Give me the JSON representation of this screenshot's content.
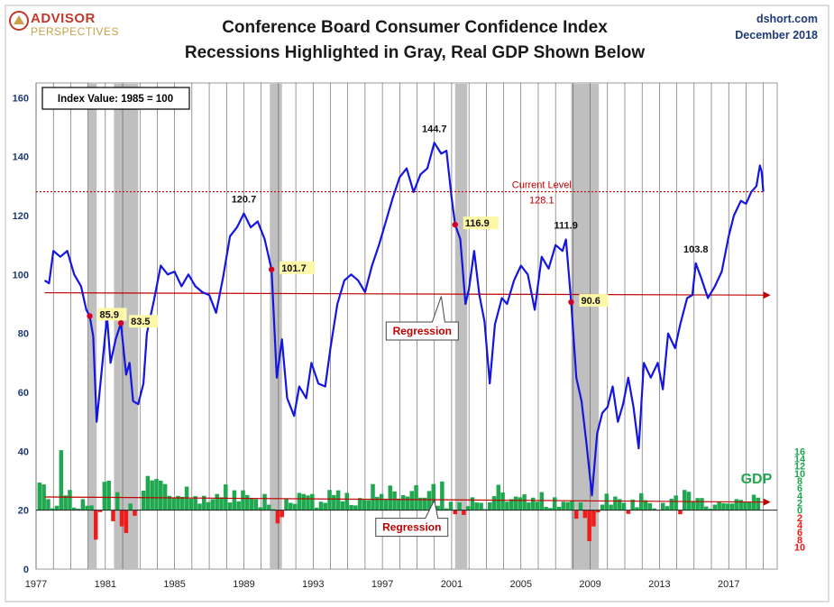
{
  "header": {
    "logo_top": "ADVISOR",
    "logo_bottom": "PERSPECTIVES",
    "title_line1": "Conference Board Consumer Confidence Index",
    "title_line2": "Recessions Highlighted in Gray, Real GDP Shown Below",
    "source": "dshort.com",
    "date": "December 2018"
  },
  "colors": {
    "index_line": "#1515e0",
    "recession": "#bfbfbf",
    "gdp_positive": "#1fa84f",
    "gdp_negative": "#ee1c1c",
    "regression": "#c00000",
    "current_level": "#c00000",
    "left_axis": "#1f3b73",
    "gdp_axis_green": "#1fa84f"
  },
  "chart_data": {
    "type": "line",
    "annotation_box": "Index Value: 1985  = 100",
    "y_ticks": [
      0,
      20,
      40,
      60,
      80,
      100,
      120,
      140,
      160
    ],
    "ylim": [
      0,
      165
    ],
    "xlim": [
      1977,
      2019.8
    ],
    "x_tick_labels": [
      "1977",
      "1981",
      "1985",
      "1989",
      "1993",
      "1997",
      "2001",
      "2005",
      "2009",
      "2013",
      "2017"
    ],
    "recessions": [
      [
        1980.0,
        1980.5
      ],
      [
        1981.5,
        1982.9
      ],
      [
        1990.5,
        1991.2
      ],
      [
        2001.2,
        2001.9
      ],
      [
        2007.9,
        2009.5
      ]
    ],
    "series": [
      {
        "points": [
          [
            1977.5,
            98
          ],
          [
            1977.75,
            97
          ],
          [
            1978.0,
            108
          ],
          [
            1978.4,
            106
          ],
          [
            1978.8,
            108
          ],
          [
            1979.2,
            100
          ],
          [
            1979.6,
            96
          ],
          [
            1979.9,
            88
          ],
          [
            1980.1,
            85.9
          ],
          [
            1980.3,
            79
          ],
          [
            1980.5,
            50
          ],
          [
            1980.8,
            68
          ],
          [
            1981.1,
            85.9
          ],
          [
            1981.3,
            70
          ],
          [
            1981.6,
            78
          ],
          [
            1981.9,
            83.5
          ],
          [
            1982.2,
            66
          ],
          [
            1982.4,
            70
          ],
          [
            1982.6,
            57
          ],
          [
            1982.9,
            56
          ],
          [
            1983.2,
            63
          ],
          [
            1983.4,
            80
          ],
          [
            1983.8,
            91
          ],
          [
            1984.2,
            103
          ],
          [
            1984.6,
            100
          ],
          [
            1985.0,
            101
          ],
          [
            1985.4,
            96
          ],
          [
            1985.8,
            100
          ],
          [
            1986.2,
            96
          ],
          [
            1986.6,
            94
          ],
          [
            1987.0,
            93
          ],
          [
            1987.4,
            87
          ],
          [
            1987.8,
            99
          ],
          [
            1988.2,
            113
          ],
          [
            1988.6,
            116
          ],
          [
            1989.0,
            120.7
          ],
          [
            1989.4,
            116
          ],
          [
            1989.8,
            118
          ],
          [
            1990.2,
            112
          ],
          [
            1990.6,
            101.7
          ],
          [
            1990.9,
            65
          ],
          [
            1991.2,
            78
          ],
          [
            1991.5,
            58
          ],
          [
            1991.9,
            52
          ],
          [
            1992.2,
            62
          ],
          [
            1992.6,
            58
          ],
          [
            1992.9,
            70
          ],
          [
            1993.3,
            63
          ],
          [
            1993.7,
            62
          ],
          [
            1994.0,
            75
          ],
          [
            1994.4,
            90
          ],
          [
            1994.8,
            98
          ],
          [
            1995.2,
            100
          ],
          [
            1995.6,
            98
          ],
          [
            1996.0,
            94
          ],
          [
            1996.4,
            103
          ],
          [
            1996.8,
            110
          ],
          [
            1997.2,
            118
          ],
          [
            1997.6,
            126
          ],
          [
            1998.0,
            133
          ],
          [
            1998.4,
            136
          ],
          [
            1998.8,
            128
          ],
          [
            1999.2,
            134
          ],
          [
            1999.6,
            136
          ],
          [
            2000.0,
            144.7
          ],
          [
            2000.4,
            141
          ],
          [
            2000.7,
            142
          ],
          [
            2001.0,
            126
          ],
          [
            2001.2,
            116.9
          ],
          [
            2001.5,
            112
          ],
          [
            2001.8,
            90
          ],
          [
            2002.0,
            95
          ],
          [
            2002.3,
            108
          ],
          [
            2002.6,
            93
          ],
          [
            2002.9,
            84
          ],
          [
            2003.2,
            63
          ],
          [
            2003.5,
            83
          ],
          [
            2003.9,
            92
          ],
          [
            2004.2,
            90
          ],
          [
            2004.6,
            98
          ],
          [
            2005.0,
            103
          ],
          [
            2005.4,
            100
          ],
          [
            2005.8,
            88
          ],
          [
            2006.2,
            106
          ],
          [
            2006.6,
            102
          ],
          [
            2007.0,
            110
          ],
          [
            2007.4,
            108
          ],
          [
            2007.6,
            111.9
          ],
          [
            2007.9,
            90.6
          ],
          [
            2008.2,
            65
          ],
          [
            2008.5,
            57
          ],
          [
            2008.8,
            42
          ],
          [
            2009.1,
            25
          ],
          [
            2009.4,
            46
          ],
          [
            2009.7,
            53
          ],
          [
            2010.0,
            55
          ],
          [
            2010.3,
            62
          ],
          [
            2010.6,
            50
          ],
          [
            2010.9,
            56
          ],
          [
            2011.2,
            65
          ],
          [
            2011.5,
            55
          ],
          [
            2011.8,
            41
          ],
          [
            2012.1,
            70
          ],
          [
            2012.5,
            65
          ],
          [
            2012.9,
            70
          ],
          [
            2013.2,
            61
          ],
          [
            2013.5,
            80
          ],
          [
            2013.9,
            75
          ],
          [
            2014.2,
            83
          ],
          [
            2014.6,
            92
          ],
          [
            2014.9,
            93
          ],
          [
            2015.1,
            103.8
          ],
          [
            2015.4,
            99
          ],
          [
            2015.8,
            92
          ],
          [
            2016.2,
            96
          ],
          [
            2016.6,
            101
          ],
          [
            2017.0,
            113
          ],
          [
            2017.3,
            120
          ],
          [
            2017.7,
            125
          ],
          [
            2018.0,
            124
          ],
          [
            2018.3,
            128
          ],
          [
            2018.6,
            130
          ],
          [
            2018.8,
            137
          ],
          [
            2018.9,
            135
          ],
          [
            2019.0,
            128.1
          ]
        ]
      }
    ],
    "point_labels": [
      {
        "x": 1980.1,
        "y": 85.9,
        "label": "85.9",
        "highlight": true
      },
      {
        "x": 1981.9,
        "y": 83.5,
        "label": "83.5",
        "highlight": true
      },
      {
        "x": 1989.0,
        "y": 120.7,
        "label": "120.7",
        "highlight": false
      },
      {
        "x": 1990.6,
        "y": 101.7,
        "label": "101.7",
        "highlight": true
      },
      {
        "x": 2000.0,
        "y": 144.7,
        "label": "144.7",
        "highlight": false
      },
      {
        "x": 2001.2,
        "y": 116.9,
        "label": "116.9",
        "highlight": true
      },
      {
        "x": 2007.6,
        "y": 111.9,
        "label": "111.9",
        "highlight": false
      },
      {
        "x": 2007.9,
        "y": 90.6,
        "label": "90.6",
        "highlight": true
      },
      {
        "x": 2015.1,
        "y": 103.8,
        "label": "103.8",
        "highlight": false
      }
    ],
    "current_level": {
      "value": 128.1,
      "label_line1": "Current Level",
      "label_line2": "128.1"
    },
    "regression_label": "Regression",
    "index_regression": [
      [
        1977.5,
        93.8
      ],
      [
        2019.0,
        93.0
      ]
    ],
    "gdp": {
      "label": "GDP",
      "axis_ticks": [
        "16",
        "14",
        "12",
        "10",
        "8",
        "6",
        "4",
        "2",
        "0",
        "2",
        "4",
        "6",
        "8",
        "10"
      ],
      "axis_ticks_negative_from": 9,
      "ylim": [
        -10,
        16
      ],
      "regression": [
        [
          1977.5,
          3.6
        ],
        [
          2019.0,
          2.2
        ]
      ],
      "values": [
        [
          1977.2,
          7.5
        ],
        [
          1977.45,
          7.0
        ],
        [
          1977.7,
          3.0
        ],
        [
          1977.95,
          0.5
        ],
        [
          1978.2,
          1.2
        ],
        [
          1978.45,
          16.3
        ],
        [
          1978.7,
          4.0
        ],
        [
          1978.95,
          5.5
        ],
        [
          1979.2,
          0.7
        ],
        [
          1979.45,
          0.4
        ],
        [
          1979.7,
          3.0
        ],
        [
          1979.95,
          1.2
        ],
        [
          1980.2,
          1.3
        ],
        [
          1980.45,
          -8.0
        ],
        [
          1980.7,
          -0.5
        ],
        [
          1980.95,
          7.7
        ],
        [
          1981.2,
          8.0
        ],
        [
          1981.45,
          -3.0
        ],
        [
          1981.7,
          4.9
        ],
        [
          1981.95,
          -4.4
        ],
        [
          1982.2,
          -6.2
        ],
        [
          1982.45,
          1.8
        ],
        [
          1982.7,
          -1.5
        ],
        [
          1982.95,
          0.2
        ],
        [
          1983.2,
          5.3
        ],
        [
          1983.45,
          9.3
        ],
        [
          1983.7,
          8.1
        ],
        [
          1983.95,
          8.5
        ],
        [
          1984.2,
          8.0
        ],
        [
          1984.45,
          7.1
        ],
        [
          1984.7,
          3.9
        ],
        [
          1984.95,
          3.3
        ],
        [
          1985.2,
          3.9
        ],
        [
          1985.45,
          3.6
        ],
        [
          1985.7,
          6.4
        ],
        [
          1985.95,
          3.1
        ],
        [
          1986.2,
          3.8
        ],
        [
          1986.45,
          1.8
        ],
        [
          1986.7,
          3.9
        ],
        [
          1986.95,
          2.2
        ],
        [
          1987.2,
          3.0
        ],
        [
          1987.45,
          4.4
        ],
        [
          1987.7,
          3.5
        ],
        [
          1987.95,
          7.0
        ],
        [
          1988.2,
          2.1
        ],
        [
          1988.45,
          5.4
        ],
        [
          1988.7,
          2.4
        ],
        [
          1988.95,
          5.4
        ],
        [
          1989.2,
          4.1
        ],
        [
          1989.45,
          3.1
        ],
        [
          1989.7,
          3.0
        ],
        [
          1989.95,
          0.8
        ],
        [
          1990.2,
          4.4
        ],
        [
          1990.45,
          1.5
        ],
        [
          1990.7,
          0.3
        ],
        [
          1990.95,
          -3.6
        ],
        [
          1991.2,
          -1.9
        ],
        [
          1991.45,
          3.1
        ],
        [
          1991.7,
          2.0
        ],
        [
          1991.95,
          1.7
        ],
        [
          1992.2,
          4.7
        ],
        [
          1992.45,
          4.4
        ],
        [
          1992.7,
          4.0
        ],
        [
          1992.95,
          4.4
        ],
        [
          1993.2,
          0.7
        ],
        [
          1993.45,
          2.3
        ],
        [
          1993.7,
          2.0
        ],
        [
          1993.95,
          5.5
        ],
        [
          1994.2,
          4.1
        ],
        [
          1994.45,
          5.4
        ],
        [
          1994.7,
          2.4
        ],
        [
          1994.95,
          4.7
        ],
        [
          1995.2,
          1.4
        ],
        [
          1995.45,
          1.3
        ],
        [
          1995.7,
          3.3
        ],
        [
          1995.95,
          2.8
        ],
        [
          1996.2,
          2.7
        ],
        [
          1996.45,
          7.1
        ],
        [
          1996.7,
          3.6
        ],
        [
          1996.95,
          4.4
        ],
        [
          1997.2,
          2.8
        ],
        [
          1997.45,
          6.7
        ],
        [
          1997.7,
          5.1
        ],
        [
          1997.95,
          3.1
        ],
        [
          1998.2,
          4.1
        ],
        [
          1998.45,
          3.7
        ],
        [
          1998.7,
          5.2
        ],
        [
          1998.95,
          6.8
        ],
        [
          1999.2,
          3.4
        ],
        [
          1999.45,
          3.4
        ],
        [
          1999.7,
          5.2
        ],
        [
          1999.95,
          7.1
        ],
        [
          2000.2,
          1.2
        ],
        [
          2000.45,
          7.8
        ],
        [
          2000.7,
          0.5
        ],
        [
          2000.95,
          2.3
        ],
        [
          2001.2,
          -1.1
        ],
        [
          2001.45,
          2.1
        ],
        [
          2001.7,
          -1.3
        ],
        [
          2001.95,
          1.1
        ],
        [
          2002.2,
          3.5
        ],
        [
          2002.45,
          2.1
        ],
        [
          2002.7,
          2.0
        ],
        [
          2002.95,
          0.3
        ],
        [
          2003.2,
          2.1
        ],
        [
          2003.45,
          3.8
        ],
        [
          2003.7,
          6.9
        ],
        [
          2003.95,
          4.8
        ],
        [
          2004.2,
          2.3
        ],
        [
          2004.45,
          3.0
        ],
        [
          2004.7,
          3.7
        ],
        [
          2004.95,
          3.5
        ],
        [
          2005.2,
          4.3
        ],
        [
          2005.45,
          2.1
        ],
        [
          2005.7,
          3.4
        ],
        [
          2005.95,
          2.3
        ],
        [
          2006.2,
          4.9
        ],
        [
          2006.45,
          0.9
        ],
        [
          2006.7,
          0.6
        ],
        [
          2006.95,
          3.5
        ],
        [
          2007.2,
          0.9
        ],
        [
          2007.45,
          2.3
        ],
        [
          2007.7,
          2.2
        ],
        [
          2007.95,
          2.5
        ],
        [
          2008.2,
          -2.3
        ],
        [
          2008.45,
          2.1
        ],
        [
          2008.7,
          -2.1
        ],
        [
          2008.95,
          -8.4
        ],
        [
          2009.2,
          -4.4
        ],
        [
          2009.45,
          -0.6
        ],
        [
          2009.7,
          1.5
        ],
        [
          2009.95,
          4.5
        ],
        [
          2010.2,
          1.5
        ],
        [
          2010.45,
          3.7
        ],
        [
          2010.7,
          3.0
        ],
        [
          2010.95,
          2.0
        ],
        [
          2011.2,
          -1.0
        ],
        [
          2011.45,
          2.9
        ],
        [
          2011.7,
          0.8
        ],
        [
          2011.95,
          4.6
        ],
        [
          2012.2,
          2.7
        ],
        [
          2012.45,
          1.9
        ],
        [
          2012.7,
          0.5
        ],
        [
          2012.95,
          0.1
        ],
        [
          2013.2,
          2.0
        ],
        [
          2013.45,
          1.1
        ],
        [
          2013.7,
          3.1
        ],
        [
          2013.95,
          4.0
        ],
        [
          2014.2,
          -1.1
        ],
        [
          2014.45,
          5.5
        ],
        [
          2014.7,
          5.0
        ],
        [
          2014.95,
          2.3
        ],
        [
          2015.2,
          3.3
        ],
        [
          2015.45,
          3.3
        ],
        [
          2015.7,
          1.0
        ],
        [
          2015.95,
          0.4
        ],
        [
          2016.2,
          1.5
        ],
        [
          2016.45,
          2.3
        ],
        [
          2016.7,
          1.9
        ],
        [
          2016.95,
          1.8
        ],
        [
          2017.2,
          1.8
        ],
        [
          2017.45,
          3.0
        ],
        [
          2017.7,
          2.8
        ],
        [
          2017.95,
          2.3
        ],
        [
          2018.2,
          2.2
        ],
        [
          2018.45,
          4.2
        ],
        [
          2018.7,
          3.4
        ]
      ]
    }
  }
}
